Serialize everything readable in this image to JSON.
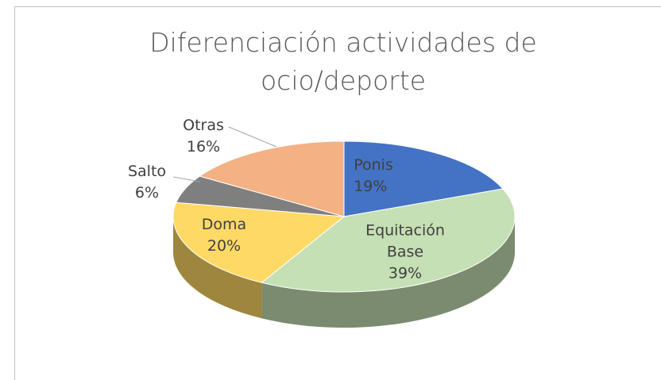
{
  "chart_data": {
    "type": "pie",
    "title": "Diferenciación actividades de ocio/deporte",
    "categories": [
      "Ponis",
      "Equitación Base",
      "Doma",
      "Salto",
      "Otras"
    ],
    "values": [
      19,
      39,
      20,
      6,
      16
    ],
    "value_labels": [
      "19%",
      "39%",
      "20%",
      "6%",
      "16%"
    ],
    "colors": [
      "#4472c4",
      "#c5e0b4",
      "#ffd966",
      "#7f7f7f",
      "#f4b183"
    ]
  }
}
